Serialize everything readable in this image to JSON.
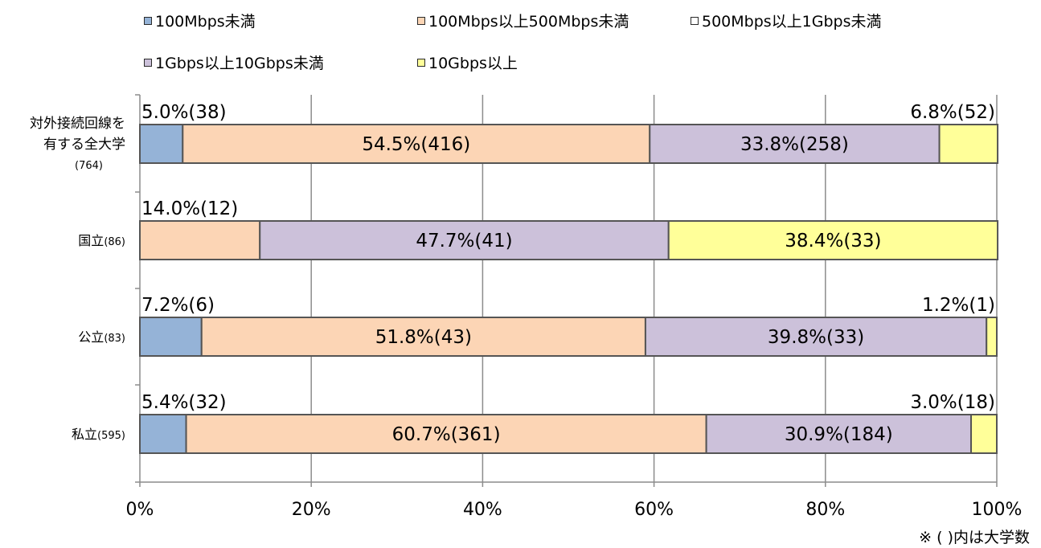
{
  "chart_data": {
    "type": "bar",
    "orientation": "horizontal",
    "stacked": "percent",
    "categories": [
      [
        "対外接続回線を",
        "有する全大学",
        "(764)"
      ],
      [
        "国立(86)"
      ],
      [
        "公立(83)"
      ],
      [
        "私立(595)"
      ]
    ],
    "series": [
      {
        "name": "100Mbps未満",
        "color": "#95b3d7",
        "values": [
          5.0,
          0,
          7.2,
          5.4
        ],
        "labels": [
          "5.0%(38)",
          "",
          "7.2%(6)",
          "5.4%(32)"
        ]
      },
      {
        "name": "100Mbps以上500Mbps未満",
        "color": "#fcd5b5",
        "values": [
          54.5,
          14.0,
          51.8,
          60.7
        ],
        "labels": [
          "54.5%(416)",
          "14.0%(12)",
          "51.8%(43)",
          "60.7%(361)"
        ]
      },
      {
        "name": "500Mbps以上1Gbps未満",
        "color": "#ffffff",
        "values": [
          0,
          0,
          0,
          0
        ],
        "labels": [
          "",
          "",
          "",
          ""
        ]
      },
      {
        "name": "1Gbps以上10Gbps未満",
        "color": "#ccc1da",
        "values": [
          33.8,
          47.7,
          39.8,
          30.9
        ],
        "labels": [
          "33.8%(258)",
          "47.7%(41)",
          "39.8%(33)",
          "30.9%(184)"
        ]
      },
      {
        "name": "10Gbps以上",
        "color": "#ffff99",
        "values": [
          6.8,
          38.4,
          1.2,
          3.0
        ],
        "labels": [
          "6.8%(52)",
          "38.4%(33)",
          "1.2%(1)",
          "3.0%(18)"
        ]
      }
    ],
    "xticks": [
      "0%",
      "20%",
      "40%",
      "60%",
      "80%",
      "100%"
    ],
    "xlim": [
      0,
      100
    ],
    "grid": true,
    "legend": "top",
    "footnote": "※ ( )内は大学数"
  }
}
